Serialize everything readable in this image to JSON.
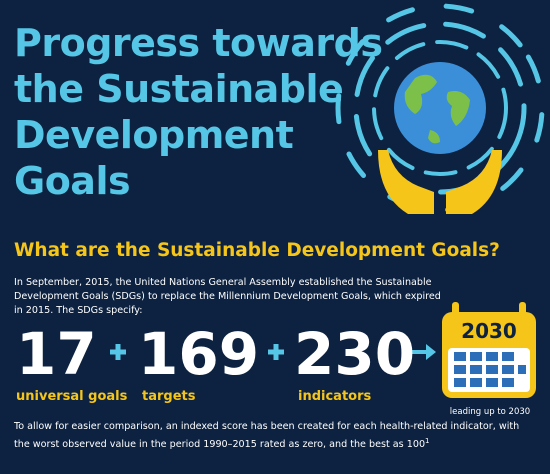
{
  "header": {
    "title_lines": [
      "Progress towards",
      "the Sustainable",
      "Development",
      "Goals"
    ]
  },
  "subtitle": "What are the Sustainable Development Goals?",
  "intro": "In September, 2015, the United Nations General Assembly established the Sustainable Development Goals (SDGs) to replace the Millennium Development Goals, which expired in 2015. The SDGs specify:",
  "stats": [
    {
      "number": 17,
      "label": "universal goals"
    },
    {
      "number": 169,
      "label": "targets"
    },
    {
      "number": 230,
      "label": "indicators"
    }
  ],
  "calendar": {
    "year": "2030",
    "caption": "leading up to 2030"
  },
  "footer": {
    "text": "To allow for easier comparison, an indexed score has been created for each health-related indicator, with the worst observed value in the period 1990–2015 rated as zero, and the best as 100",
    "footnote_ref": "1"
  }
}
